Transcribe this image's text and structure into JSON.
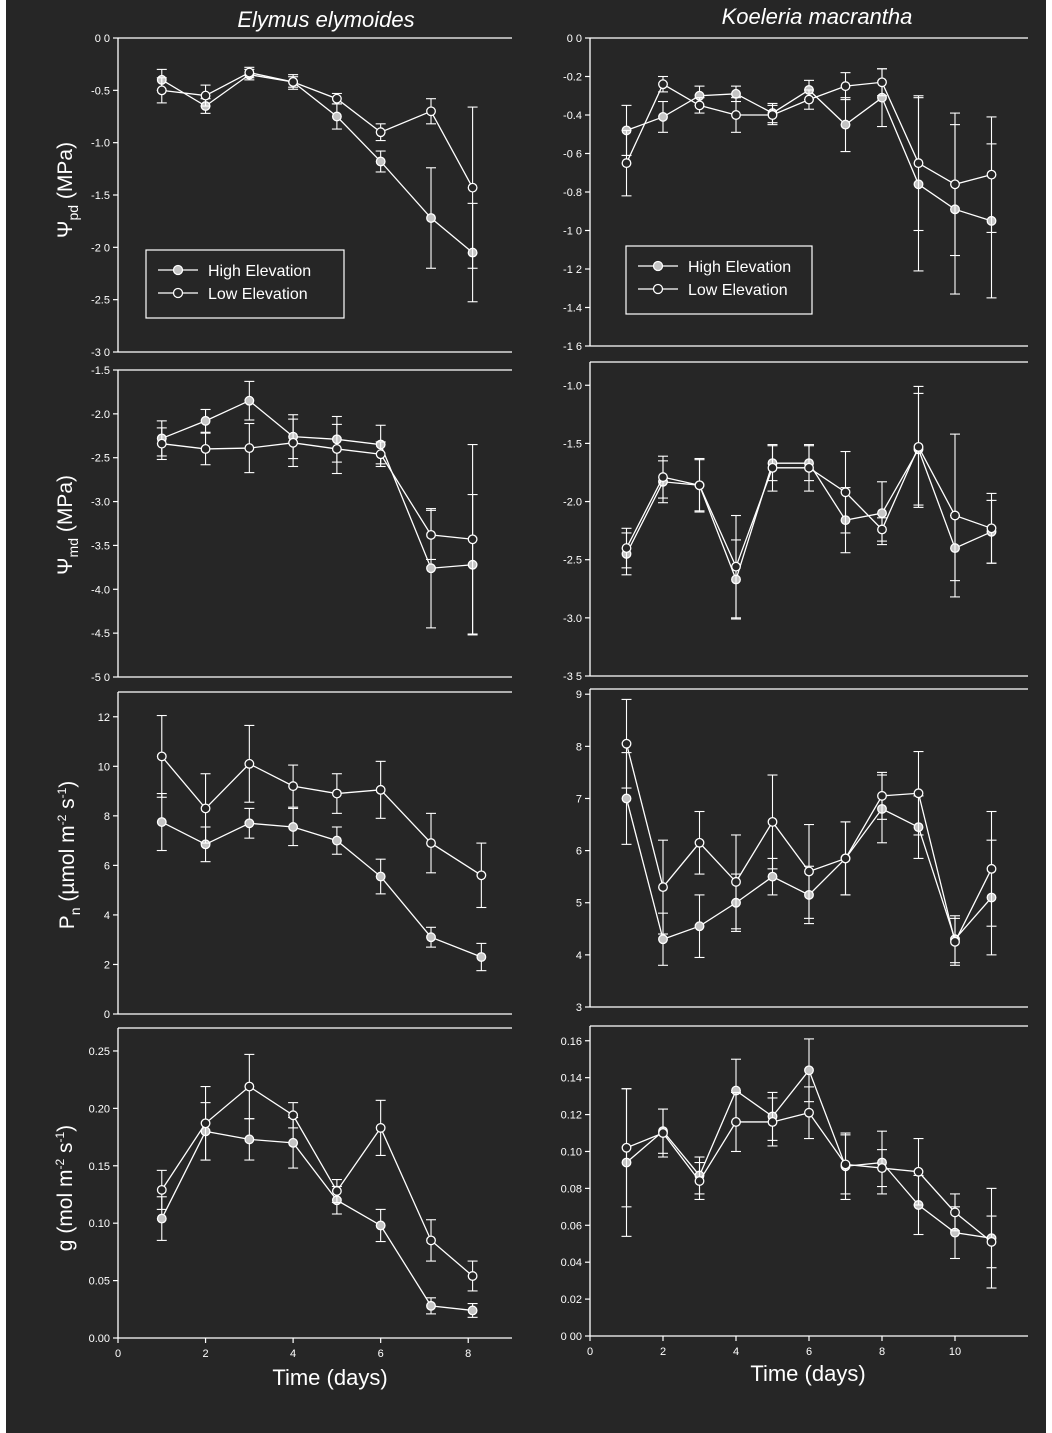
{
  "colors": {
    "background": "#262626",
    "foreground": "#ffffff",
    "high_marker": "#c4c4c4",
    "page": "#ffffff"
  },
  "chart_data": [
    {
      "id": "ee_psi_pd",
      "type": "line",
      "column_title": "Elymus elymoides",
      "ylabel": "Ψpd (MPa)",
      "ylim": [
        -3.0,
        0.0
      ],
      "yticks": [
        {
          "v": 0.0,
          "t": "0 0"
        },
        {
          "v": -0.5,
          "t": "-0.5"
        },
        {
          "v": -1.0,
          "t": "-1.0"
        },
        {
          "v": -1.5,
          "t": "-1.5"
        },
        {
          "v": -2.0,
          "t": "-2 0"
        },
        {
          "v": -2.5,
          "t": "-2.5"
        },
        {
          "v": -3.0,
          "t": "-3 0"
        }
      ],
      "xlim": [
        0,
        9
      ],
      "xticks": [],
      "legend": {
        "items": [
          "High Elevation",
          "Low Elevation"
        ],
        "placement": "bottom-left"
      },
      "series": [
        {
          "name": "High Elevation",
          "marker": "filled",
          "x": [
            1,
            2,
            3,
            4,
            5,
            6,
            7.15,
            8.1
          ],
          "y": [
            -0.4,
            -0.65,
            -0.35,
            -0.42,
            -0.75,
            -1.18,
            -1.72,
            -2.05
          ],
          "err": [
            0.1,
            0.07,
            0.05,
            0.05,
            0.12,
            0.1,
            0.48,
            0.47
          ]
        },
        {
          "name": "Low Elevation",
          "marker": "open",
          "x": [
            1,
            2,
            3,
            4,
            5,
            6,
            7.15,
            8.1
          ],
          "y": [
            -0.5,
            -0.55,
            -0.33,
            -0.42,
            -0.58,
            -0.9,
            -0.7,
            -1.43
          ],
          "err": [
            0.12,
            0.1,
            0.05,
            0.07,
            0.05,
            0.08,
            0.12,
            0.77
          ]
        }
      ]
    },
    {
      "id": "km_psi_pd",
      "type": "line",
      "column_title": "Koeleria macrantha",
      "ylabel": "",
      "ylim": [
        -1.6,
        0.0
      ],
      "yticks": [
        {
          "v": 0.0,
          "t": "0 0"
        },
        {
          "v": -0.2,
          "t": "-0.2"
        },
        {
          "v": -0.4,
          "t": "-0.4"
        },
        {
          "v": -0.6,
          "t": "-0 6"
        },
        {
          "v": -0.8,
          "t": "-0.8"
        },
        {
          "v": -1.0,
          "t": "-1 0"
        },
        {
          "v": -1.2,
          "t": "-1 2"
        },
        {
          "v": -1.4,
          "t": "-1.4"
        },
        {
          "v": -1.6,
          "t": "-1 6"
        }
      ],
      "xlim": [
        0,
        12
      ],
      "xticks": [],
      "legend": {
        "items": [
          "High Elevation",
          "Low Elevation"
        ],
        "placement": "bottom-left"
      },
      "series": [
        {
          "name": "High Elevation",
          "marker": "filled",
          "x": [
            1,
            2,
            3,
            4,
            5,
            6,
            7,
            8,
            9,
            10,
            11
          ],
          "y": [
            -0.48,
            -0.41,
            -0.3,
            -0.29,
            -0.39,
            -0.27,
            -0.45,
            -0.31,
            -0.76,
            -0.89,
            -0.95
          ],
          "err": [
            0.13,
            0.08,
            0.05,
            0.04,
            0.05,
            0.05,
            0.14,
            0.15,
            0.45,
            0.44,
            0.4
          ]
        },
        {
          "name": "Low Elevation",
          "marker": "open",
          "x": [
            1,
            2,
            3,
            4,
            5,
            6,
            7,
            8,
            9,
            10,
            11
          ],
          "y": [
            -0.65,
            -0.24,
            -0.35,
            -0.4,
            -0.4,
            -0.32,
            -0.25,
            -0.23,
            -0.65,
            -0.76,
            -0.71
          ],
          "err": [
            0.17,
            0.04,
            0.04,
            0.09,
            0.05,
            0.05,
            0.07,
            0.07,
            0.35,
            0.37,
            0.3
          ]
        }
      ]
    },
    {
      "id": "ee_psi_md",
      "type": "line",
      "ylabel": "Ψmd (MPa)",
      "ylim": [
        -5.0,
        -1.5
      ],
      "yticks": [
        {
          "v": -1.5,
          "t": "-1.5"
        },
        {
          "v": -2.0,
          "t": "-2.0"
        },
        {
          "v": -2.5,
          "t": "-2.5"
        },
        {
          "v": -3.0,
          "t": "-3.0"
        },
        {
          "v": -3.5,
          "t": "-3.5"
        },
        {
          "v": -4.0,
          "t": "-4.0"
        },
        {
          "v": -4.5,
          "t": "-4.5"
        },
        {
          "v": -5.0,
          "t": "-5 0"
        }
      ],
      "xlim": [
        0,
        9
      ],
      "xticks": [],
      "series": [
        {
          "name": "High Elevation",
          "marker": "filled",
          "x": [
            1,
            2,
            3,
            4,
            5,
            6,
            7.15,
            8.1
          ],
          "y": [
            -2.28,
            -2.08,
            -1.85,
            -2.26,
            -2.29,
            -2.35,
            -3.76,
            -3.72
          ],
          "err": [
            0.2,
            0.13,
            0.22,
            0.25,
            0.26,
            0.22,
            0.68,
            0.8
          ]
        },
        {
          "name": "Low Elevation",
          "marker": "open",
          "x": [
            1,
            2,
            3,
            4,
            5,
            6,
            7.15,
            8.1
          ],
          "y": [
            -2.34,
            -2.4,
            -2.39,
            -2.33,
            -2.4,
            -2.46,
            -3.38,
            -3.43
          ],
          "err": [
            0.18,
            0.18,
            0.28,
            0.27,
            0.28,
            0.14,
            0.28,
            1.08
          ]
        }
      ]
    },
    {
      "id": "km_psi_md",
      "type": "line",
      "ylabel": "",
      "ylim": [
        -3.5,
        -0.8
      ],
      "yticks": [
        {
          "v": -1.0,
          "t": "-1.0"
        },
        {
          "v": -1.5,
          "t": "-1.5"
        },
        {
          "v": -2.0,
          "t": "-2.0"
        },
        {
          "v": -2.5,
          "t": "-2.5"
        },
        {
          "v": -3.0,
          "t": "-3.0"
        },
        {
          "v": -3.5,
          "t": "-3 5"
        }
      ],
      "xlim": [
        0,
        12
      ],
      "xticks": [],
      "series": [
        {
          "name": "High Elevation",
          "marker": "filled",
          "x": [
            1,
            2,
            3,
            4,
            5,
            6,
            7,
            8,
            9,
            10,
            11
          ],
          "y": [
            -2.45,
            -1.83,
            -1.86,
            -2.67,
            -1.67,
            -1.67,
            -2.16,
            -2.1,
            -1.55,
            -2.4,
            -2.26
          ],
          "err": [
            0.18,
            0.18,
            0.22,
            0.34,
            0.15,
            0.15,
            0.28,
            0.27,
            0.48,
            0.28,
            0.27
          ]
        },
        {
          "name": "Low Elevation",
          "marker": "open",
          "x": [
            1,
            2,
            3,
            4,
            5,
            6,
            7,
            8,
            9,
            10,
            11
          ],
          "y": [
            -2.4,
            -1.79,
            -1.86,
            -2.56,
            -1.71,
            -1.71,
            -1.92,
            -2.24,
            -1.53,
            -2.12,
            -2.23
          ],
          "err": [
            0.17,
            0.18,
            0.23,
            0.44,
            0.2,
            0.2,
            0.35,
            0.1,
            0.52,
            0.7,
            0.3
          ]
        }
      ]
    },
    {
      "id": "ee_pn",
      "type": "line",
      "ylabel": "Pn (µmol m-2 s-1)",
      "ylim": [
        0,
        13
      ],
      "yticks": [
        {
          "v": 0,
          "t": "0"
        },
        {
          "v": 2,
          "t": "2"
        },
        {
          "v": 4,
          "t": "4"
        },
        {
          "v": 6,
          "t": "6"
        },
        {
          "v": 8,
          "t": "8"
        },
        {
          "v": 10,
          "t": "10"
        },
        {
          "v": 12,
          "t": "12"
        }
      ],
      "xlim": [
        0,
        9
      ],
      "xticks": [],
      "series": [
        {
          "name": "High Elevation",
          "marker": "filled",
          "x": [
            1,
            2,
            3,
            4,
            5,
            6,
            7.15,
            8.3
          ],
          "y": [
            7.75,
            6.85,
            7.7,
            7.55,
            7.0,
            5.55,
            3.1,
            2.3
          ],
          "err": [
            1.15,
            0.7,
            0.6,
            0.75,
            0.55,
            0.7,
            0.4,
            0.55
          ]
        },
        {
          "name": "Low Elevation",
          "marker": "open",
          "x": [
            1,
            2,
            3,
            4,
            5,
            6,
            7.15,
            8.3
          ],
          "y": [
            10.4,
            8.3,
            10.1,
            9.2,
            8.9,
            9.05,
            6.9,
            5.6
          ],
          "err": [
            1.65,
            1.4,
            1.55,
            0.85,
            0.8,
            1.15,
            1.2,
            1.3
          ]
        }
      ]
    },
    {
      "id": "km_pn",
      "type": "line",
      "ylabel": "",
      "ylim": [
        3,
        9.1
      ],
      "yticks": [
        {
          "v": 3,
          "t": "3"
        },
        {
          "v": 4,
          "t": "4"
        },
        {
          "v": 5,
          "t": "5"
        },
        {
          "v": 6,
          "t": "6"
        },
        {
          "v": 7,
          "t": "7"
        },
        {
          "v": 8,
          "t": "8"
        },
        {
          "v": 9,
          "t": "9"
        }
      ],
      "xlim": [
        0,
        12
      ],
      "xticks": [],
      "series": [
        {
          "name": "High Elevation",
          "marker": "filled",
          "x": [
            1,
            2,
            3,
            4,
            5,
            6,
            7,
            8,
            9,
            10,
            11
          ],
          "y": [
            7.0,
            4.3,
            4.55,
            5.0,
            5.5,
            5.15,
            5.85,
            6.8,
            6.45,
            4.3,
            5.1
          ],
          "err": [
            0.88,
            0.5,
            0.6,
            0.55,
            0.35,
            0.55,
            0.7,
            0.65,
            0.6,
            0.45,
            1.1
          ]
        },
        {
          "name": "Low Elevation",
          "marker": "open",
          "x": [
            1,
            2,
            3,
            4,
            5,
            6,
            7,
            8,
            9,
            10,
            11
          ],
          "y": [
            8.05,
            5.3,
            6.15,
            5.4,
            6.55,
            5.6,
            5.85,
            7.05,
            7.1,
            4.25,
            5.65
          ],
          "err": [
            0.85,
            0.9,
            0.6,
            0.9,
            0.9,
            0.9,
            0.7,
            0.45,
            0.8,
            0.45,
            1.1
          ]
        }
      ]
    },
    {
      "id": "ee_g",
      "type": "line",
      "ylabel": "g (mol m-2 s-1)",
      "ylim": [
        0,
        0.27
      ],
      "yticks": [
        {
          "v": 0,
          "t": "0.00"
        },
        {
          "v": 0.05,
          "t": "0.05"
        },
        {
          "v": 0.1,
          "t": "0.10"
        },
        {
          "v": 0.15,
          "t": "0.15"
        },
        {
          "v": 0.2,
          "t": "0.20"
        },
        {
          "v": 0.25,
          "t": "0.25"
        }
      ],
      "xlim": [
        0,
        9
      ],
      "xticks": [
        {
          "v": 0,
          "t": "0"
        },
        {
          "v": 2,
          "t": "2"
        },
        {
          "v": 4,
          "t": "4"
        },
        {
          "v": 6,
          "t": "6"
        },
        {
          "v": 8,
          "t": "8"
        }
      ],
      "xlabel": "Time (days)",
      "series": [
        {
          "name": "High Elevation",
          "marker": "filled",
          "x": [
            1,
            2,
            3,
            4,
            5,
            6,
            7.15,
            8.1
          ],
          "y": [
            0.104,
            0.18,
            0.173,
            0.17,
            0.12,
            0.098,
            0.028,
            0.024
          ],
          "err": [
            0.019,
            0.025,
            0.018,
            0.022,
            0.012,
            0.014,
            0.007,
            0.006
          ]
        },
        {
          "name": "Low Elevation",
          "marker": "open",
          "x": [
            1,
            2,
            3,
            4,
            5,
            6,
            7.15,
            8.1
          ],
          "y": [
            0.129,
            0.187,
            0.219,
            0.194,
            0.128,
            0.183,
            0.085,
            0.054
          ],
          "err": [
            0.017,
            0.032,
            0.028,
            0.011,
            0.01,
            0.024,
            0.018,
            0.013
          ]
        }
      ]
    },
    {
      "id": "km_g",
      "type": "line",
      "ylabel": "",
      "ylim": [
        0,
        0.168
      ],
      "yticks": [
        {
          "v": 0,
          "t": "0 00"
        },
        {
          "v": 0.02,
          "t": "0.02"
        },
        {
          "v": 0.04,
          "t": "0.04"
        },
        {
          "v": 0.06,
          "t": "0.06"
        },
        {
          "v": 0.08,
          "t": "0.08"
        },
        {
          "v": 0.1,
          "t": "0.10"
        },
        {
          "v": 0.12,
          "t": "0.12"
        },
        {
          "v": 0.14,
          "t": "0.14"
        },
        {
          "v": 0.16,
          "t": "0.16"
        }
      ],
      "xlim": [
        0,
        12
      ],
      "xticks": [
        {
          "v": 0,
          "t": "0"
        },
        {
          "v": 2,
          "t": "2"
        },
        {
          "v": 4,
          "t": "4"
        },
        {
          "v": 6,
          "t": "6"
        },
        {
          "v": 8,
          "t": "8"
        },
        {
          "v": 10,
          "t": "10"
        }
      ],
      "xlabel": "Time (days)",
      "series": [
        {
          "name": "High Elevation",
          "marker": "filled",
          "x": [
            1,
            2,
            3,
            4,
            5,
            6,
            7,
            8,
            9,
            10,
            11
          ],
          "y": [
            0.094,
            0.111,
            0.087,
            0.133,
            0.119,
            0.144,
            0.092,
            0.094,
            0.071,
            0.056,
            0.053
          ],
          "err": [
            0.04,
            0.012,
            0.01,
            0.017,
            0.013,
            0.017,
            0.018,
            0.017,
            0.016,
            0.014,
            0.027
          ]
        },
        {
          "name": "Low Elevation",
          "marker": "open",
          "x": [
            1,
            2,
            3,
            4,
            5,
            6,
            7,
            8,
            9,
            10,
            11
          ],
          "y": [
            0.102,
            0.11,
            0.084,
            0.116,
            0.116,
            0.121,
            0.093,
            0.091,
            0.089,
            0.067,
            0.051
          ],
          "err": [
            0.032,
            0.013,
            0.01,
            0.016,
            0.013,
            0.014,
            0.016,
            0.01,
            0.018,
            0.01,
            0.014
          ]
        }
      ]
    }
  ]
}
